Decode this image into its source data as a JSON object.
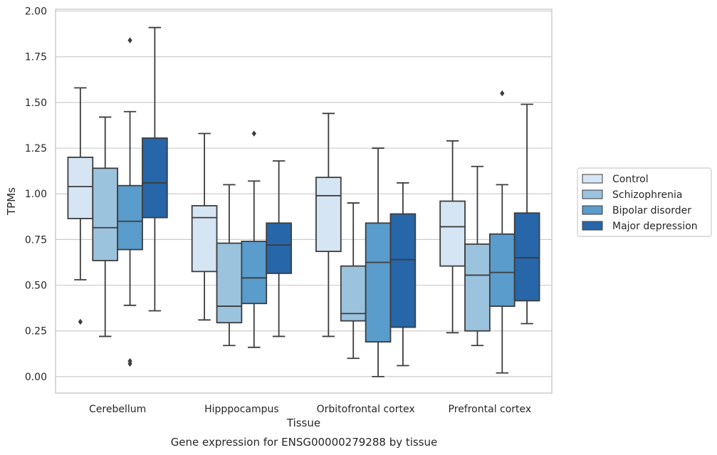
{
  "chart_data": {
    "type": "boxplot",
    "title": "Gene expression for ENSG00000279288 by tissue",
    "xlabel": "Tissue",
    "ylabel": "TPMs",
    "ylim": [
      -0.09,
      2.01
    ],
    "yticks": [
      0.0,
      0.25,
      0.5,
      0.75,
      1.0,
      1.25,
      1.5,
      1.75,
      2.0
    ],
    "ytick_labels": [
      "0.00",
      "0.25",
      "0.50",
      "0.75",
      "1.00",
      "1.25",
      "1.50",
      "1.75",
      "2.00"
    ],
    "grid": "horizontal",
    "legend_position": "right",
    "categories": [
      "Cerebellum",
      "Hipppocampus",
      "Orbitofrontal cortex",
      "Prefrontal cortex"
    ],
    "series": [
      {
        "name": "Control",
        "color": "#d6e5f3",
        "boxes": [
          {
            "whislo": 0.53,
            "q1": 0.865,
            "med": 1.04,
            "q3": 1.2,
            "whishi": 1.58,
            "fliers": [
              0.3
            ]
          },
          {
            "whislo": 0.31,
            "q1": 0.575,
            "med": 0.87,
            "q3": 0.935,
            "whishi": 1.33,
            "fliers": []
          },
          {
            "whislo": 0.22,
            "q1": 0.685,
            "med": 0.99,
            "q3": 1.09,
            "whishi": 1.44,
            "fliers": []
          },
          {
            "whislo": 0.24,
            "q1": 0.605,
            "med": 0.82,
            "q3": 0.96,
            "whishi": 1.29,
            "fliers": []
          }
        ]
      },
      {
        "name": "Schizophrenia",
        "color": "#9cc3de",
        "boxes": [
          {
            "whislo": 0.22,
            "q1": 0.635,
            "med": 0.815,
            "q3": 1.14,
            "whishi": 1.42,
            "fliers": []
          },
          {
            "whislo": 0.17,
            "q1": 0.295,
            "med": 0.385,
            "q3": 0.73,
            "whishi": 1.05,
            "fliers": []
          },
          {
            "whislo": 0.1,
            "q1": 0.305,
            "med": 0.345,
            "q3": 0.605,
            "whishi": 0.95,
            "fliers": []
          },
          {
            "whislo": 0.17,
            "q1": 0.25,
            "med": 0.555,
            "q3": 0.725,
            "whishi": 1.15,
            "fliers": []
          }
        ]
      },
      {
        "name": "Bipolar disorder",
        "color": "#5a9ccb",
        "boxes": [
          {
            "whislo": 0.39,
            "q1": 0.695,
            "med": 0.85,
            "q3": 1.045,
            "whishi": 1.45,
            "fliers": [
              1.84,
              0.085,
              0.07
            ]
          },
          {
            "whislo": 0.16,
            "q1": 0.4,
            "med": 0.54,
            "q3": 0.74,
            "whishi": 1.07,
            "fliers": [
              1.33
            ]
          },
          {
            "whislo": 0.0,
            "q1": 0.19,
            "med": 0.625,
            "q3": 0.84,
            "whishi": 1.25,
            "fliers": []
          },
          {
            "whislo": 0.02,
            "q1": 0.385,
            "med": 0.57,
            "q3": 0.78,
            "whishi": 1.05,
            "fliers": [
              1.55
            ]
          }
        ]
      },
      {
        "name": "Major depression",
        "color": "#2666a9",
        "boxes": [
          {
            "whislo": 0.36,
            "q1": 0.87,
            "med": 1.06,
            "q3": 1.305,
            "whishi": 1.91,
            "fliers": []
          },
          {
            "whislo": 0.22,
            "q1": 0.565,
            "med": 0.72,
            "q3": 0.84,
            "whishi": 1.18,
            "fliers": []
          },
          {
            "whislo": 0.06,
            "q1": 0.27,
            "med": 0.64,
            "q3": 0.89,
            "whishi": 1.06,
            "fliers": []
          },
          {
            "whislo": 0.29,
            "q1": 0.415,
            "med": 0.65,
            "q3": 0.895,
            "whishi": 1.49,
            "fliers": []
          }
        ]
      }
    ]
  }
}
